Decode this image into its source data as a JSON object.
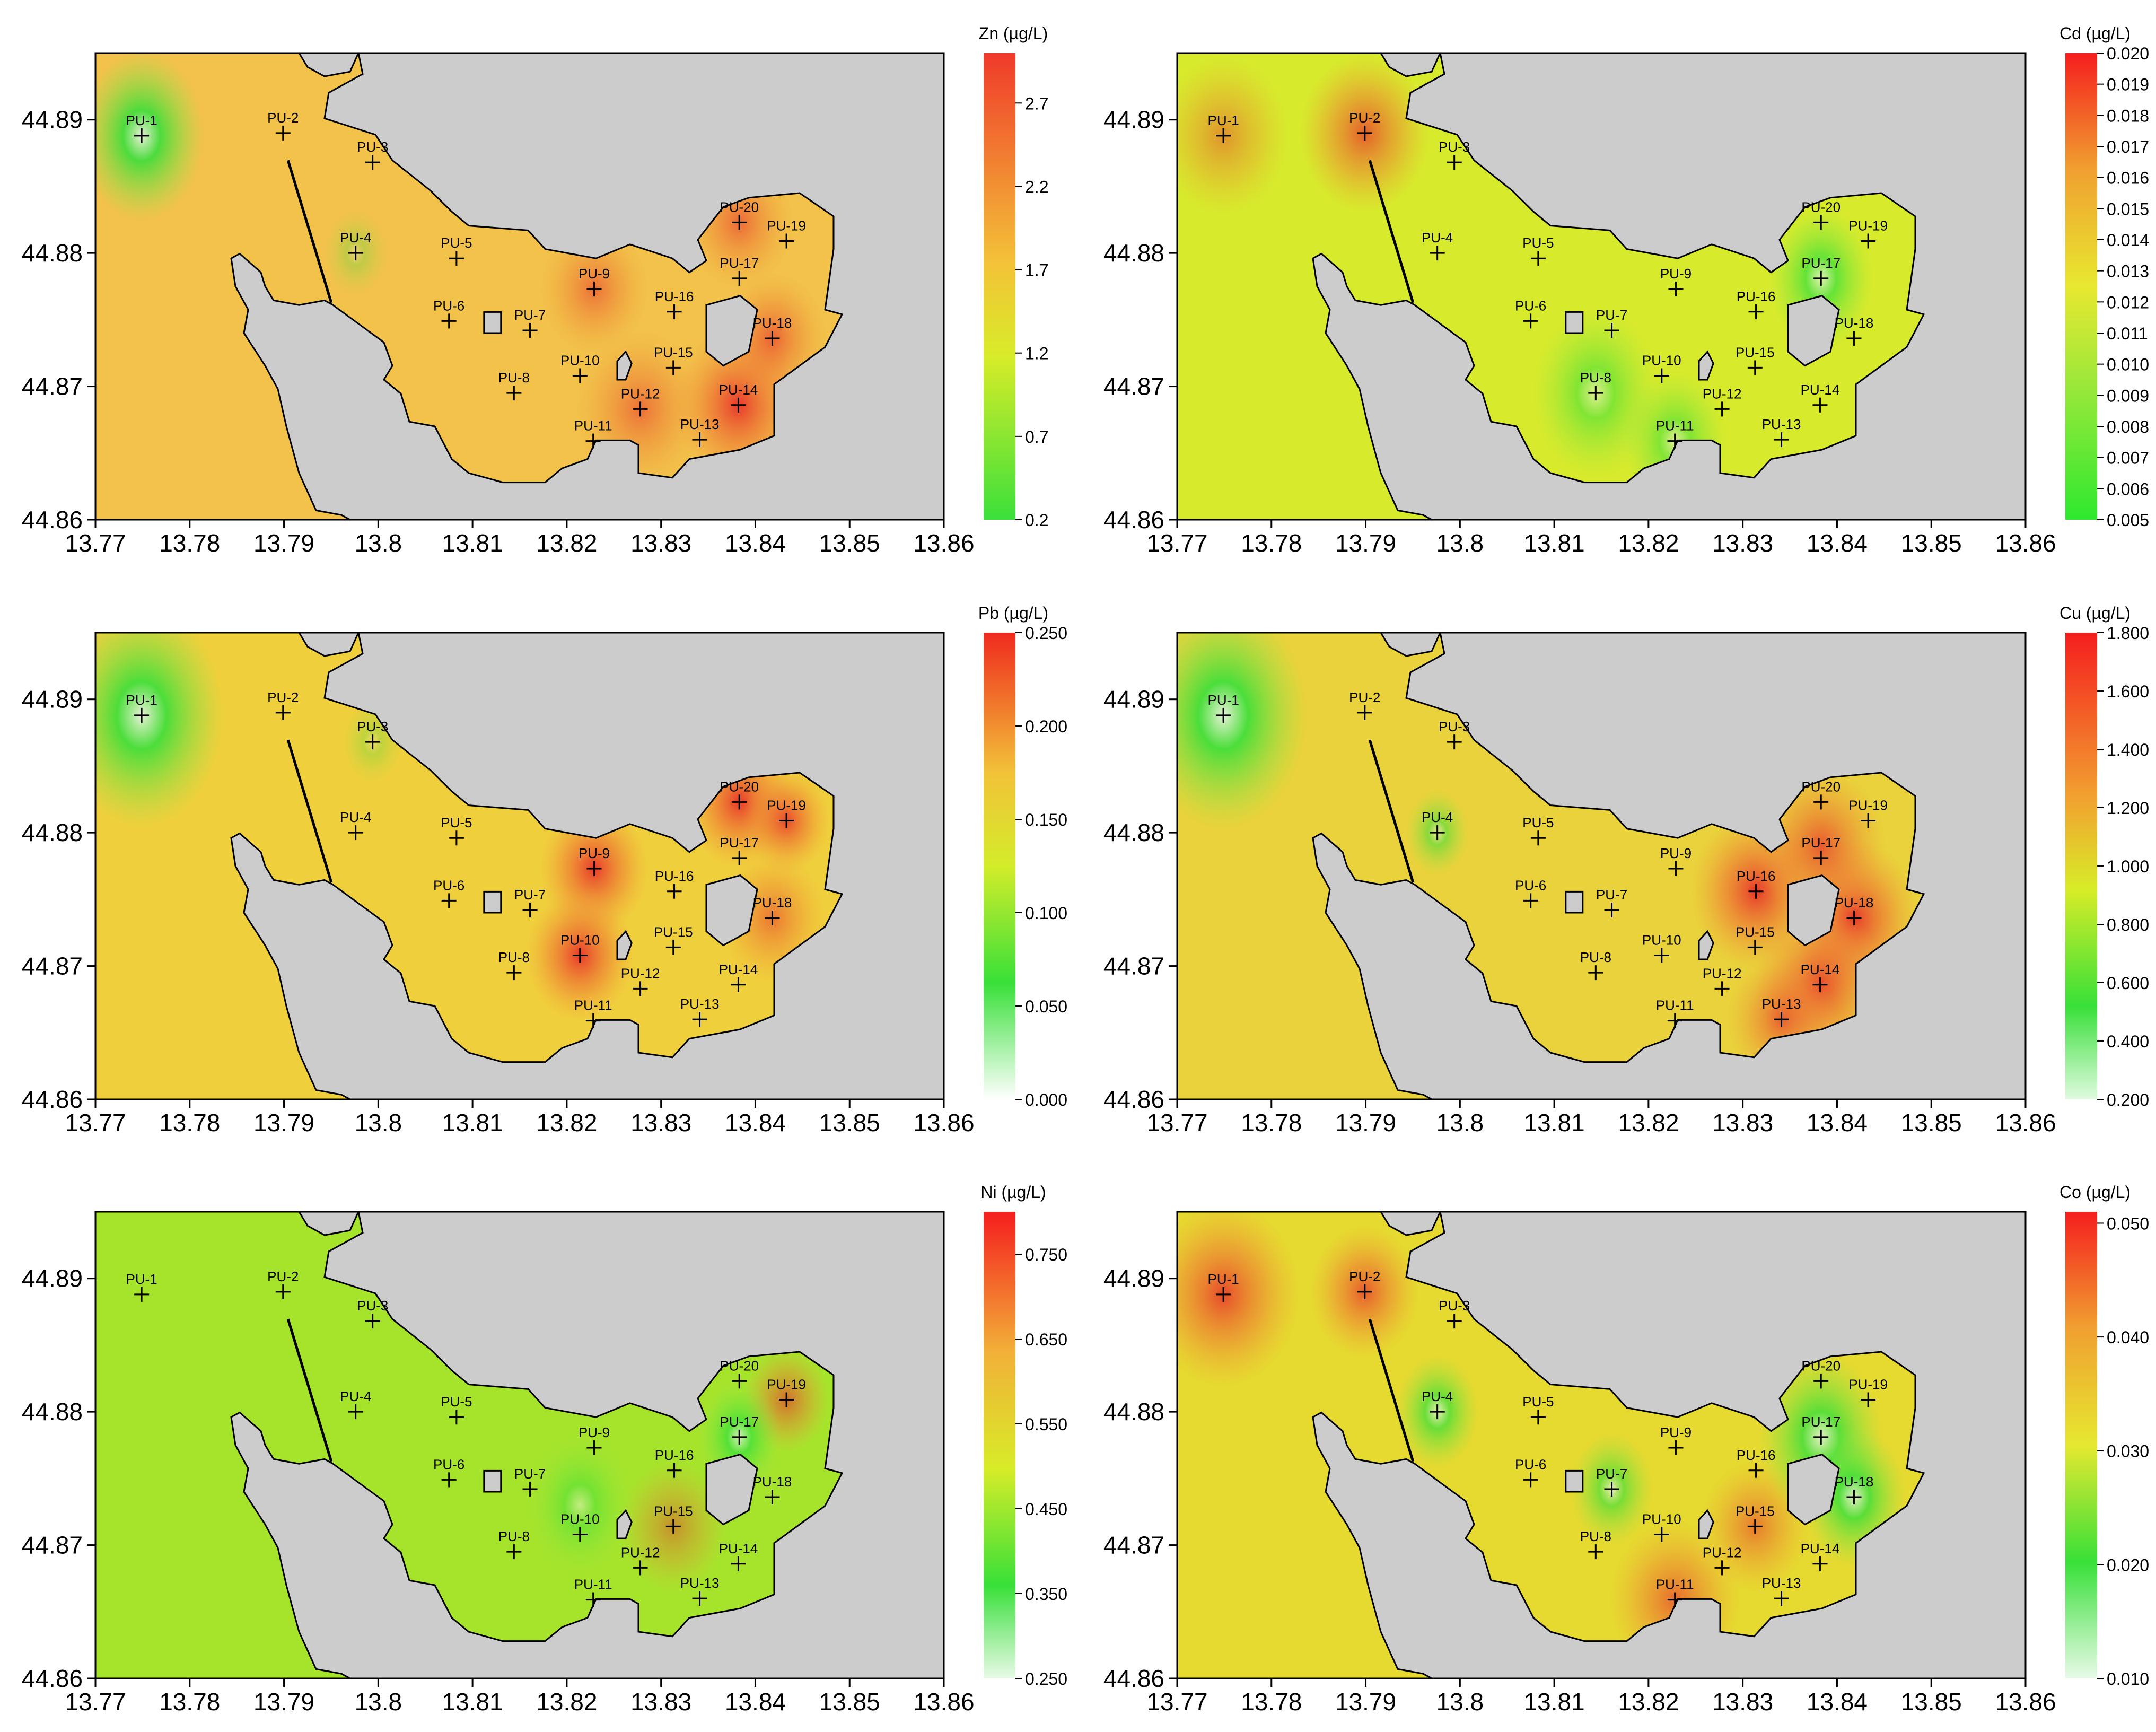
{
  "chart_data": [
    {
      "type": "heatmap",
      "title": "Zn (µg/L)",
      "x_ticks": [
        "13.77",
        "13.78",
        "13.79",
        "13.8",
        "13.81",
        "13.82",
        "13.83",
        "13.84",
        "13.85",
        "13.86"
      ],
      "y_ticks": [
        "44.86",
        "44.87",
        "44.88",
        "44.89"
      ],
      "xlim": [
        13.77,
        13.86
      ],
      "ylim": [
        44.86,
        44.895
      ],
      "colorbar": {
        "ticks": [
          "0.2",
          "0.7",
          "1.2",
          "1.7",
          "2.2",
          "2.7"
        ],
        "min": 0.2,
        "max": 3.0
      },
      "colors": {
        "background": "#f2c24a",
        "hotspot": "#e8432f",
        "low": "#35e03a"
      }
    },
    {
      "type": "heatmap",
      "title": "Cd (µg/L)",
      "x_ticks": [
        "13.77",
        "13.78",
        "13.79",
        "13.8",
        "13.81",
        "13.82",
        "13.83",
        "13.84",
        "13.85",
        "13.86"
      ],
      "y_ticks": [
        "44.86",
        "44.87",
        "44.88",
        "44.89"
      ],
      "xlim": [
        13.77,
        13.86
      ],
      "ylim": [
        44.86,
        44.895
      ],
      "colorbar": {
        "ticks": [
          "0.005",
          "0.006",
          "0.007",
          "0.008",
          "0.009",
          "0.010",
          "0.011",
          "0.012",
          "0.013",
          "0.014",
          "0.015",
          "0.016",
          "0.017",
          "0.018",
          "0.019",
          "0.020"
        ],
        "min": 0.005,
        "max": 0.02
      },
      "colors": {
        "background": "#d7ea2c",
        "hotspot": "#f2d13a",
        "low": "#8ee84a"
      }
    },
    {
      "type": "heatmap",
      "title": "Pb (µg/L)",
      "x_ticks": [
        "13.77",
        "13.78",
        "13.79",
        "13.8",
        "13.81",
        "13.82",
        "13.83",
        "13.84",
        "13.85",
        "13.86"
      ],
      "y_ticks": [
        "44.86",
        "44.87",
        "44.88",
        "44.89"
      ],
      "xlim": [
        13.77,
        13.86
      ],
      "ylim": [
        44.86,
        44.895
      ],
      "colorbar": {
        "ticks": [
          "0.000",
          "0.050",
          "0.100",
          "0.150",
          "0.200",
          "0.250"
        ],
        "min": 0.0,
        "max": 0.25
      },
      "colors": {
        "background": "#f0cf3c",
        "hotspot": "#e84a2c",
        "low": "#2fe048"
      }
    },
    {
      "type": "heatmap",
      "title": "Cu (µg/L)",
      "x_ticks": [
        "13.77",
        "13.78",
        "13.79",
        "13.8",
        "13.81",
        "13.82",
        "13.83",
        "13.84",
        "13.85",
        "13.86"
      ],
      "y_ticks": [
        "44.86",
        "44.87",
        "44.88",
        "44.89"
      ],
      "xlim": [
        13.77,
        13.86
      ],
      "ylim": [
        44.86,
        44.895
      ],
      "colorbar": {
        "ticks": [
          "0.200",
          "0.400",
          "0.600",
          "0.800",
          "1.000",
          "1.200",
          "1.400",
          "1.600",
          "1.800"
        ],
        "min": 0.2,
        "max": 1.8
      },
      "colors": {
        "background": "#e9d23b",
        "hotspot": "#e83226",
        "low": "#2fe048"
      }
    },
    {
      "type": "heatmap",
      "title": "Ni (µg/L)",
      "x_ticks": [
        "13.77",
        "13.78",
        "13.79",
        "13.8",
        "13.81",
        "13.82",
        "13.83",
        "13.84",
        "13.85",
        "13.86"
      ],
      "y_ticks": [
        "44.86",
        "44.87",
        "44.88",
        "44.89"
      ],
      "xlim": [
        13.77,
        13.86
      ],
      "ylim": [
        44.86,
        44.895
      ],
      "colorbar": {
        "ticks": [
          "0.250",
          "0.350",
          "0.450",
          "0.550",
          "0.650",
          "0.750"
        ],
        "min": 0.25,
        "max": 0.8
      },
      "colors": {
        "background": "#a6e42c",
        "hotspot": "#c8e43a",
        "low": "#7be040"
      }
    },
    {
      "type": "heatmap",
      "title": "Co (µg/L)",
      "x_ticks": [
        "13.77",
        "13.78",
        "13.79",
        "13.8",
        "13.81",
        "13.82",
        "13.83",
        "13.84",
        "13.85",
        "13.86"
      ],
      "y_ticks": [
        "44.86",
        "44.87",
        "44.88",
        "44.89"
      ],
      "xlim": [
        13.77,
        13.86
      ],
      "ylim": [
        44.86,
        44.895
      ],
      "colorbar": {
        "ticks": [
          "0.010",
          "0.020",
          "0.030",
          "0.040",
          "0.050"
        ],
        "min": 0.01,
        "max": 0.051
      },
      "colors": {
        "background": "#e6d930",
        "hotspot": "#f0c040",
        "low": "#4ee03c"
      }
    }
  ],
  "stations": [
    {
      "label": "PU-1",
      "x": 13.7749,
      "y": 44.8888
    },
    {
      "label": "PU-2",
      "x": 13.7899,
      "y": 44.889
    },
    {
      "label": "PU-3",
      "x": 13.7994,
      "y": 44.8868
    },
    {
      "label": "PU-4",
      "x": 13.7976,
      "y": 44.88
    },
    {
      "label": "PU-5",
      "x": 13.8083,
      "y": 44.8796
    },
    {
      "label": "PU-6",
      "x": 13.8075,
      "y": 44.8749
    },
    {
      "label": "PU-7",
      "x": 13.8161,
      "y": 44.8742
    },
    {
      "label": "PU-8",
      "x": 13.8144,
      "y": 44.8695
    },
    {
      "label": "PU-9",
      "x": 13.8229,
      "y": 44.8773
    },
    {
      "label": "PU-10",
      "x": 13.8214,
      "y": 44.8708
    },
    {
      "label": "PU-11",
      "x": 13.8228,
      "y": 44.8659
    },
    {
      "label": "PU-12",
      "x": 13.8278,
      "y": 44.8683
    },
    {
      "label": "PU-13",
      "x": 13.8341,
      "y": 44.866
    },
    {
      "label": "PU-14",
      "x": 13.8382,
      "y": 44.8686
    },
    {
      "label": "PU-15",
      "x": 13.8313,
      "y": 44.8714
    },
    {
      "label": "PU-16",
      "x": 13.8314,
      "y": 44.8756
    },
    {
      "label": "PU-17",
      "x": 13.8383,
      "y": 44.8781
    },
    {
      "label": "PU-18",
      "x": 13.8418,
      "y": 44.8736
    },
    {
      "label": "PU-19",
      "x": 13.8433,
      "y": 44.8809
    },
    {
      "label": "PU-20",
      "x": 13.8383,
      "y": 44.8823
    }
  ],
  "hotspots": [
    [
      {
        "x": 13.8382,
        "y": 44.8686,
        "r": 0.006,
        "level": 1.0
      },
      {
        "x": 13.8418,
        "y": 44.8736,
        "r": 0.005,
        "level": 0.7
      },
      {
        "x": 13.8383,
        "y": 44.8823,
        "r": 0.005,
        "level": 0.65
      },
      {
        "x": 13.8229,
        "y": 44.8773,
        "r": 0.005,
        "level": 0.6
      },
      {
        "x": 13.8278,
        "y": 44.8683,
        "r": 0.006,
        "level": 0.6
      }
    ],
    [
      {
        "x": 13.7899,
        "y": 44.889,
        "r": 0.006,
        "level": 0.8
      },
      {
        "x": 13.7749,
        "y": 44.8888,
        "r": 0.006,
        "level": 0.5
      }
    ],
    [
      {
        "x": 13.8229,
        "y": 44.8773,
        "r": 0.005,
        "level": 1.0
      },
      {
        "x": 13.8214,
        "y": 44.8708,
        "r": 0.005,
        "level": 1.0
      },
      {
        "x": 13.8383,
        "y": 44.8823,
        "r": 0.005,
        "level": 1.0
      },
      {
        "x": 13.8433,
        "y": 44.8809,
        "r": 0.004,
        "level": 0.9
      },
      {
        "x": 13.8418,
        "y": 44.8736,
        "r": 0.005,
        "level": 0.6
      }
    ],
    [
      {
        "x": 13.8418,
        "y": 44.8736,
        "r": 0.006,
        "level": 1.0
      },
      {
        "x": 13.8314,
        "y": 44.8756,
        "r": 0.006,
        "level": 1.0
      },
      {
        "x": 13.8382,
        "y": 44.8686,
        "r": 0.006,
        "level": 0.9
      },
      {
        "x": 13.8383,
        "y": 44.879,
        "r": 0.006,
        "level": 0.8
      },
      {
        "x": 13.8341,
        "y": 44.866,
        "r": 0.005,
        "level": 0.7
      }
    ],
    [
      {
        "x": 13.8433,
        "y": 44.8809,
        "r": 0.004,
        "level": 0.7
      },
      {
        "x": 13.8313,
        "y": 44.8714,
        "r": 0.005,
        "level": 0.5
      }
    ],
    [
      {
        "x": 13.7749,
        "y": 44.8888,
        "r": 0.007,
        "level": 0.9
      },
      {
        "x": 13.7899,
        "y": 44.889,
        "r": 0.005,
        "level": 0.8
      },
      {
        "x": 13.8228,
        "y": 44.8659,
        "r": 0.006,
        "level": 0.7
      },
      {
        "x": 13.8313,
        "y": 44.8714,
        "r": 0.005,
        "level": 0.6
      }
    ]
  ],
  "lowspots": [
    [
      {
        "x": 13.7749,
        "y": 44.8888,
        "r": 0.006,
        "level": 1.0
      },
      {
        "x": 13.7976,
        "y": 44.88,
        "r": 0.003,
        "level": 0.3
      }
    ],
    [
      {
        "x": 13.8383,
        "y": 44.8781,
        "r": 0.005,
        "level": 0.8
      },
      {
        "x": 13.8144,
        "y": 44.8695,
        "r": 0.006,
        "level": 0.6
      },
      {
        "x": 13.8228,
        "y": 44.8659,
        "r": 0.005,
        "level": 0.6
      }
    ],
    [
      {
        "x": 13.7749,
        "y": 44.8888,
        "r": 0.008,
        "level": 1.0
      },
      {
        "x": 13.7994,
        "y": 44.8868,
        "r": 0.003,
        "level": 0.3
      }
    ],
    [
      {
        "x": 13.7749,
        "y": 44.8888,
        "r": 0.008,
        "level": 1.0
      },
      {
        "x": 13.7976,
        "y": 44.88,
        "r": 0.003,
        "level": 0.6
      }
    ],
    [
      {
        "x": 13.8383,
        "y": 44.8781,
        "r": 0.004,
        "level": 0.8
      },
      {
        "x": 13.8214,
        "y": 44.873,
        "r": 0.005,
        "level": 0.5
      }
    ],
    [
      {
        "x": 13.8383,
        "y": 44.8781,
        "r": 0.006,
        "level": 0.9
      },
      {
        "x": 13.8418,
        "y": 44.8736,
        "r": 0.005,
        "level": 0.9
      },
      {
        "x": 13.7976,
        "y": 44.88,
        "r": 0.004,
        "level": 0.8
      },
      {
        "x": 13.8161,
        "y": 44.8742,
        "r": 0.004,
        "level": 0.7
      }
    ]
  ]
}
